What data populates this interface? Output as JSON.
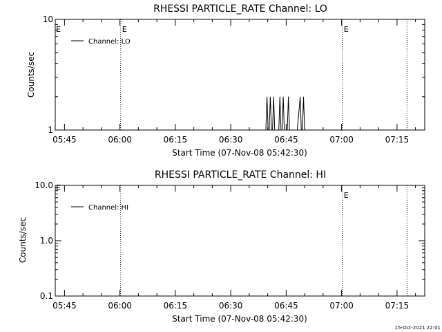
{
  "chart_data": [
    {
      "type": "line",
      "title": "RHESSI PARTICLE_RATE Channel: LO",
      "xlabel": "Start Time (07-Nov-08 05:42:30)",
      "ylabel": "Counts/sec",
      "yscale": "log",
      "ylim": [
        1,
        10
      ],
      "yticks": [
        "1",
        "10"
      ],
      "xticks": [
        "05:45",
        "06:00",
        "06:15",
        "06:30",
        "06:45",
        "07:00",
        "07:15"
      ],
      "xtick_minutes": [
        2.5,
        17.5,
        32.5,
        47.5,
        62.5,
        77.5,
        92.5
      ],
      "xlim_minutes": [
        0,
        100
      ],
      "legend": "top-left",
      "series": [
        {
          "name": "Channel: LO",
          "x_minutes": [
            56.5,
            57.0,
            57.3,
            57.6,
            57.9,
            58.2,
            58.5,
            58.8,
            59.1,
            59.4,
            60.0,
            60.5,
            60.8,
            61.1,
            61.4,
            61.7,
            62.0,
            62.8,
            63.1,
            63.4,
            63.7,
            64.0,
            65.0,
            65.5,
            66.3,
            66.6,
            66.9,
            67.2,
            67.5
          ],
          "values": [
            1,
            1,
            2,
            1,
            1,
            2,
            1,
            1,
            2,
            1,
            1,
            1,
            2,
            1,
            1,
            2,
            1,
            1,
            2,
            1,
            1,
            1,
            1,
            1,
            2,
            1,
            1,
            2,
            1
          ]
        }
      ],
      "markers": [
        {
          "label": "E",
          "x_minutes": 17.7
        },
        {
          "label": "E",
          "x_minutes": 77.7
        },
        {
          "label": "",
          "x_minutes": 95.2
        }
      ],
      "left_marker_label": "E"
    },
    {
      "type": "line",
      "title": "RHESSI PARTICLE_RATE Channel: HI",
      "xlabel": "Start Time (07-Nov-08 05:42:30)",
      "ylabel": "Counts/sec",
      "yscale": "log",
      "ylim": [
        0.1,
        10
      ],
      "yticks": [
        "0.1",
        "1.0",
        "10.0"
      ],
      "xticks": [
        "05:45",
        "06:00",
        "06:15",
        "06:30",
        "06:45",
        "07:00",
        "07:15"
      ],
      "xtick_minutes": [
        2.5,
        17.5,
        32.5,
        47.5,
        62.5,
        77.5,
        92.5
      ],
      "xlim_minutes": [
        0,
        100
      ],
      "legend": "top-left",
      "series": [
        {
          "name": "Channel: HI",
          "x_minutes": [],
          "values": []
        }
      ],
      "markers": [
        {
          "label": "",
          "x_minutes": 17.7
        },
        {
          "label": "E",
          "x_minutes": 77.7
        },
        {
          "label": "",
          "x_minutes": 95.2
        }
      ],
      "left_marker_label": "E"
    }
  ],
  "footer": {
    "timestamp": "15-Oct-2021 22:01"
  }
}
